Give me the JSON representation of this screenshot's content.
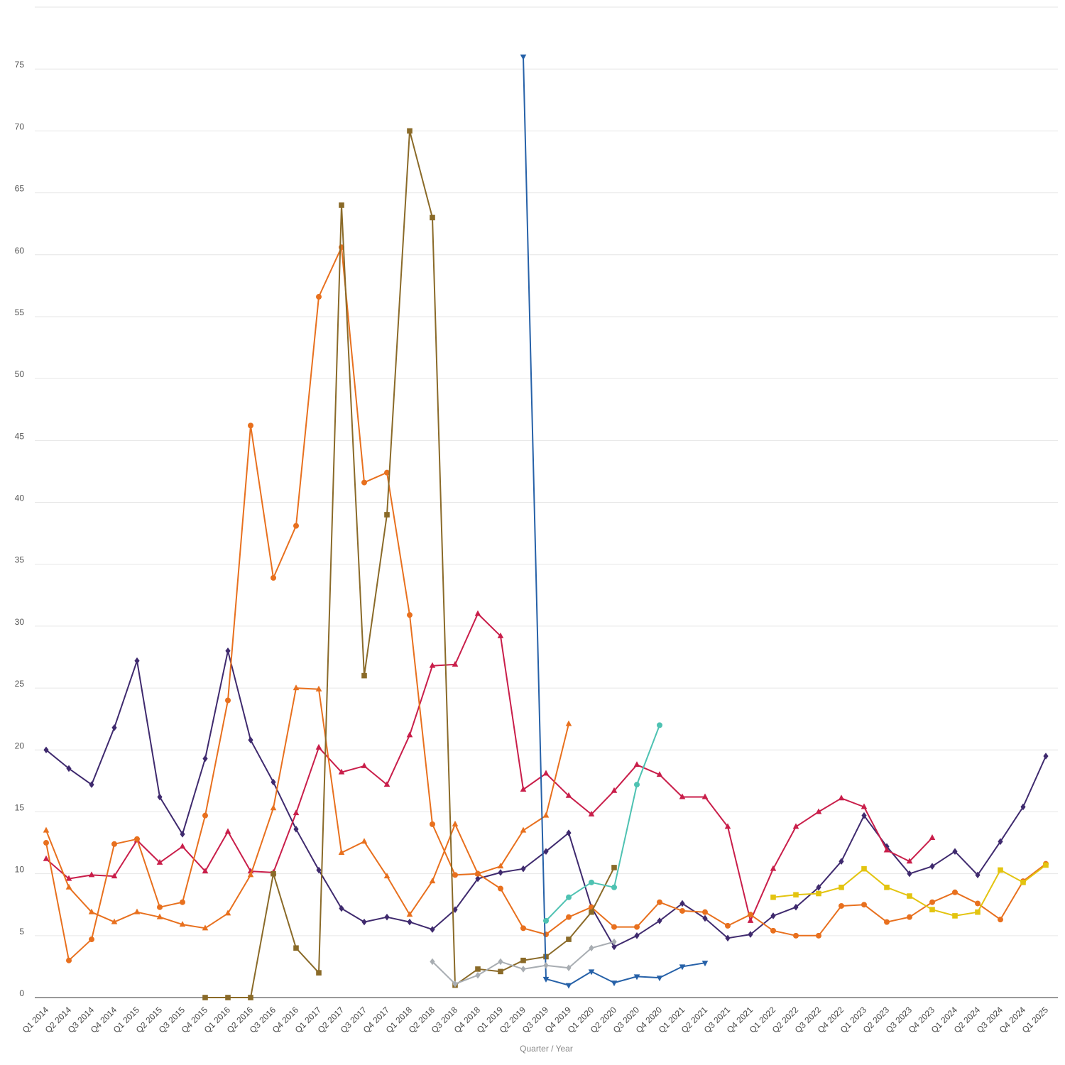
{
  "chart_data": {
    "type": "line",
    "title": "",
    "xlabel": "Quarter / Year",
    "ylabel": "",
    "ylim": [
      0,
      80
    ],
    "yticks": [
      0,
      5,
      10,
      15,
      20,
      25,
      30,
      35,
      40,
      45,
      50,
      55,
      60,
      65,
      70,
      75
    ],
    "grid": true,
    "legend": "none",
    "categories": [
      "Q1 2014",
      "Q2 2014",
      "Q3 2014",
      "Q4 2014",
      "Q1 2015",
      "Q2 2015",
      "Q3 2015",
      "Q4 2015",
      "Q1 2016",
      "Q2 2016",
      "Q3 2016",
      "Q4 2016",
      "Q1 2017",
      "Q2 2017",
      "Q3 2017",
      "Q4 2017",
      "Q1 2018",
      "Q2 2018",
      "Q3 2018",
      "Q4 2018",
      "Q1 2019",
      "Q2 2019",
      "Q3 2019",
      "Q4 2019",
      "Q1 2020",
      "Q2 2020",
      "Q3 2020",
      "Q4 2020",
      "Q1 2021",
      "Q2 2021",
      "Q3 2021",
      "Q4 2021",
      "Q1 2022",
      "Q2 2022",
      "Q3 2022",
      "Q4 2022",
      "Q1 2023",
      "Q2 2023",
      "Q3 2023",
      "Q4 2023",
      "Q1 2024",
      "Q2 2024",
      "Q3 2024",
      "Q4 2024",
      "Q1 2025"
    ],
    "series": [
      {
        "color": "#3f2a6e",
        "marker": "diamond",
        "values": [
          20.0,
          18.5,
          17.2,
          21.8,
          27.2,
          16.2,
          13.2,
          19.3,
          28.0,
          20.8,
          17.4,
          13.6,
          10.3,
          7.2,
          6.1,
          6.5,
          6.1,
          5.5,
          7.1,
          9.6,
          10.1,
          10.4,
          11.8,
          13.3,
          7.3,
          4.1,
          5.0,
          6.2,
          7.6,
          6.4,
          4.8,
          5.1,
          6.6,
          7.3,
          8.9,
          11.0,
          14.7,
          12.2,
          10.0,
          10.6,
          11.8,
          9.9,
          12.6,
          15.4,
          19.5
        ]
      },
      {
        "color": "#c91e4a",
        "marker": "triangle-up",
        "values": [
          11.2,
          9.6,
          9.9,
          9.8,
          12.7,
          10.9,
          12.2,
          10.2,
          13.4,
          10.2,
          10.1,
          14.9,
          20.2,
          18.2,
          18.7,
          17.2,
          21.2,
          26.8,
          26.9,
          31.0,
          29.2,
          16.8,
          18.1,
          16.3,
          14.8,
          16.7,
          18.8,
          18.0,
          16.2,
          16.2,
          13.8,
          6.2,
          10.4,
          13.8,
          15.0,
          16.1,
          15.4,
          11.9,
          11.0,
          12.9,
          null,
          null,
          null,
          null,
          null
        ]
      },
      {
        "color": "#e8701e",
        "marker": "circle",
        "values": [
          12.5,
          3.0,
          4.7,
          12.4,
          12.8,
          7.3,
          7.7,
          14.7,
          24.0,
          46.2,
          33.9,
          38.1,
          56.6,
          60.6,
          41.6,
          42.4,
          30.9,
          14.0,
          9.9,
          10.0,
          8.8,
          5.6,
          5.1,
          6.5,
          7.3,
          5.7,
          5.7,
          7.7,
          7.0,
          6.9,
          5.8,
          6.7,
          5.4,
          5.0,
          5.0,
          7.4,
          7.5,
          6.1,
          6.5,
          7.7,
          8.5,
          7.6,
          6.3,
          9.4,
          10.8
        ]
      },
      {
        "color": "#e8701e",
        "marker": "triangle-up",
        "values": [
          13.5,
          8.9,
          6.9,
          6.1,
          6.9,
          6.5,
          5.9,
          5.6,
          6.8,
          9.9,
          15.3,
          25.0,
          24.9,
          11.7,
          12.6,
          9.8,
          6.7,
          9.4,
          14.0,
          10.0,
          10.6,
          13.5,
          14.7,
          22.1,
          null,
          null,
          null,
          null,
          null,
          null,
          null,
          null,
          null,
          null,
          null,
          null,
          null,
          null,
          null,
          null,
          null,
          null,
          null,
          null,
          null
        ]
      },
      {
        "color": "#8a6a28",
        "marker": "square",
        "values": [
          null,
          null,
          null,
          null,
          null,
          null,
          null,
          0.0,
          0.0,
          0.0,
          10.0,
          4.0,
          2.0,
          64.0,
          26.0,
          39.0,
          70.0,
          63.0,
          1.0,
          2.3,
          2.1,
          3.0,
          3.3,
          4.7,
          6.9,
          10.5,
          null,
          null,
          null,
          null,
          null,
          null,
          null,
          null,
          null,
          null,
          null,
          null,
          null,
          null,
          null,
          null,
          null,
          null,
          null
        ]
      },
      {
        "color": "#2661a8",
        "marker": "triangle-down",
        "values": [
          null,
          null,
          null,
          null,
          null,
          null,
          null,
          null,
          null,
          null,
          null,
          null,
          null,
          null,
          null,
          null,
          null,
          null,
          null,
          null,
          null,
          76.0,
          1.5,
          1.0,
          2.1,
          1.2,
          1.7,
          1.6,
          2.5,
          2.8,
          null,
          null,
          null,
          null,
          null,
          null,
          null,
          null,
          null,
          null,
          null,
          null,
          null,
          null,
          null
        ]
      },
      {
        "color": "#4ec2b2",
        "marker": "circle",
        "values": [
          null,
          null,
          null,
          null,
          null,
          null,
          null,
          null,
          null,
          null,
          null,
          null,
          null,
          null,
          null,
          null,
          null,
          null,
          null,
          null,
          null,
          null,
          6.2,
          8.1,
          9.3,
          8.9,
          17.2,
          22.0,
          null,
          null,
          null,
          null,
          null,
          null,
          null,
          null,
          null,
          null,
          null,
          null,
          null,
          null,
          null,
          null,
          null
        ]
      },
      {
        "color": "#a8adb2",
        "marker": "diamond",
        "values": [
          null,
          null,
          null,
          null,
          null,
          null,
          null,
          null,
          null,
          null,
          null,
          null,
          null,
          null,
          null,
          null,
          null,
          2.9,
          1.1,
          1.8,
          2.9,
          2.3,
          2.6,
          2.4,
          4.0,
          4.5,
          null,
          null,
          null,
          null,
          null,
          null,
          null,
          null,
          null,
          null,
          null,
          null,
          null,
          null,
          null,
          null,
          null,
          null,
          null
        ]
      },
      {
        "color": "#e3c410",
        "marker": "square",
        "values": [
          null,
          null,
          null,
          null,
          null,
          null,
          null,
          null,
          null,
          null,
          null,
          null,
          null,
          null,
          null,
          null,
          null,
          null,
          null,
          null,
          null,
          null,
          null,
          null,
          null,
          null,
          null,
          null,
          null,
          null,
          null,
          null,
          8.1,
          8.3,
          8.4,
          8.9,
          10.4,
          8.9,
          8.2,
          7.1,
          6.6,
          6.9,
          10.3,
          9.3,
          10.7
        ]
      }
    ]
  }
}
